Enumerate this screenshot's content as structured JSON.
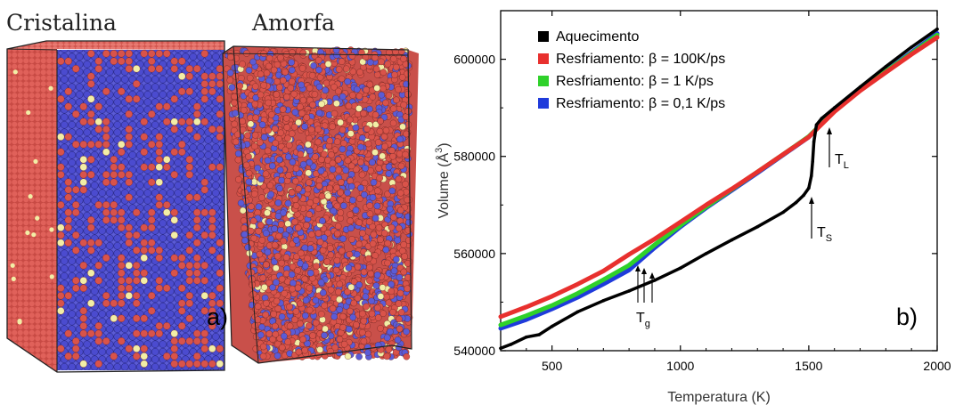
{
  "panel_a": {
    "label_left": "Cristalina",
    "label_right": "Amorfa",
    "panel_letter": "a)",
    "atom_colors": {
      "red": "#d9534a",
      "blue": "#5b5bd6",
      "yellow": "#f2eea6",
      "edge": "#222222"
    }
  },
  "panel_b": {
    "panel_letter": "b)",
    "annotations": {
      "tl": {
        "base": "T",
        "sub": "L"
      },
      "ts": {
        "base": "T",
        "sub": "S"
      },
      "tg": {
        "base": "T",
        "sub": "g"
      }
    }
  },
  "chart_data": {
    "type": "line",
    "title": "",
    "xlabel": "Temperatura (K)",
    "ylabel_base": "Volume (Å",
    "ylabel_sup": "3",
    "ylabel_close": ")",
    "xlim": [
      300,
      2000
    ],
    "ylim": [
      540000,
      610000
    ],
    "xticks": [
      500,
      1000,
      1500,
      2000
    ],
    "yticks": [
      540000,
      560000,
      580000,
      600000
    ],
    "xtick_labels": [
      "500",
      "1000",
      "1500",
      "2000"
    ],
    "ytick_labels": [
      "540000",
      "560000",
      "580000",
      "600000"
    ],
    "legend_position": "top-left",
    "series": [
      {
        "name": "Aquecimento",
        "color": "#000000",
        "x": [
          300,
          340,
          400,
          450,
          500,
          600,
          700,
          800,
          900,
          1000,
          1100,
          1200,
          1300,
          1400,
          1450,
          1480,
          1500,
          1510,
          1515,
          1520,
          1530,
          1550,
          1600,
          1700,
          1800,
          1900,
          2000
        ],
        "y": [
          540500,
          541300,
          542800,
          543300,
          545000,
          548000,
          550300,
          552300,
          554500,
          557000,
          560000,
          562800,
          565500,
          568500,
          570500,
          572000,
          573500,
          576000,
          579000,
          583000,
          586500,
          587800,
          590000,
          594300,
          598500,
          602500,
          606200
        ]
      },
      {
        "name": "Resfriamento: β = 100K/ps",
        "color": "#e8302e",
        "x": [
          300,
          400,
          500,
          600,
          700,
          800,
          900,
          1000,
          1100,
          1200,
          1300,
          1400,
          1500,
          1600,
          1700,
          1800,
          1900,
          2000
        ],
        "y": [
          547000,
          549000,
          551200,
          553700,
          556400,
          559800,
          563000,
          566500,
          570000,
          573300,
          576800,
          580400,
          584000,
          589200,
          593500,
          597300,
          601000,
          604500
        ]
      },
      {
        "name": "Resfriamento: β = 1 K/ps",
        "color": "#2fd12a",
        "x": [
          300,
          400,
          500,
          600,
          700,
          800,
          900,
          1000,
          1100,
          1200,
          1300,
          1400,
          1500,
          1600,
          1700,
          1800,
          1900,
          2000
        ],
        "y": [
          545300,
          547200,
          549300,
          551800,
          554600,
          557600,
          561800,
          565800,
          569600,
          573200,
          576800,
          580400,
          584100,
          589300,
          593600,
          597500,
          601200,
          605000
        ]
      },
      {
        "name": "Resfriamento: β = 0,1 K/ps",
        "color": "#1f3bdb",
        "x": [
          300,
          400,
          500,
          600,
          700,
          800,
          900,
          1000,
          1100,
          1200,
          1300,
          1400,
          1500,
          1600,
          1700,
          1800,
          1900,
          2000
        ],
        "y": [
          544600,
          546400,
          548600,
          551000,
          553700,
          556600,
          561200,
          565500,
          569400,
          573000,
          576600,
          580300,
          584000,
          589400,
          593700,
          597600,
          601400,
          605300
        ]
      }
    ]
  }
}
